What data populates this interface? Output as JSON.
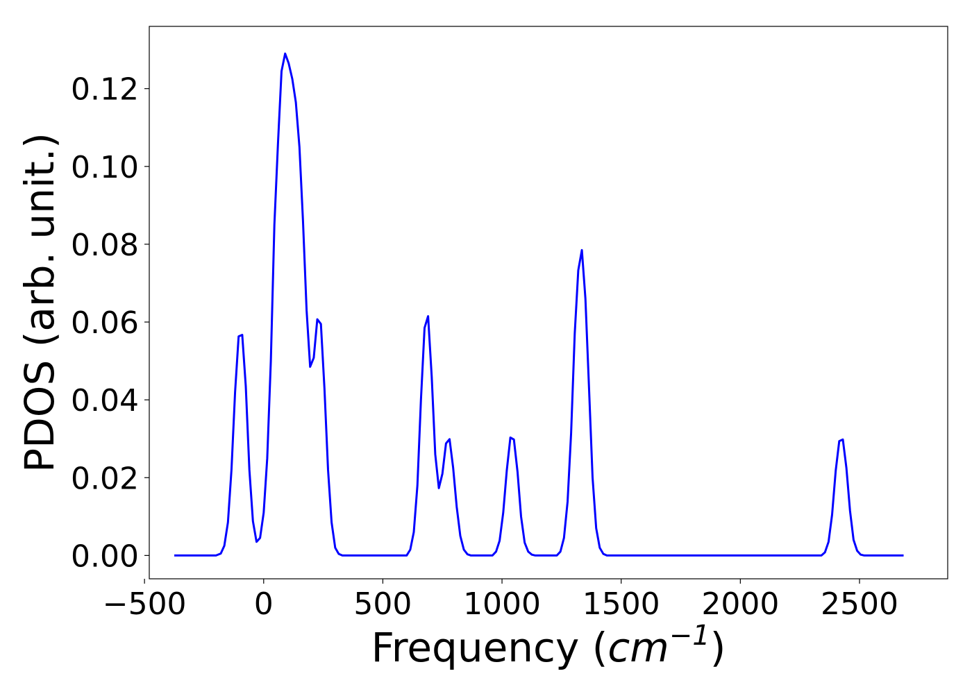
{
  "chart_data": {
    "type": "line",
    "title": "",
    "xlabel": {
      "prefix": "Frequency (",
      "unit": "cm",
      "exponent": "−1",
      "suffix": ")"
    },
    "ylabel": "PDOS (arb. unit.)",
    "xlim": [
      -480,
      2870
    ],
    "ylim": [
      -0.006,
      0.136
    ],
    "xticks": [
      -500,
      0,
      500,
      1000,
      1500,
      2000,
      2500
    ],
    "xtick_labels": [
      "−500",
      "0",
      "500",
      "1000",
      "1500",
      "2000",
      "2500"
    ],
    "yticks": [
      0.0,
      0.02,
      0.04,
      0.06,
      0.08,
      0.1,
      0.12
    ],
    "ytick_labels": [
      "0.00",
      "0.02",
      "0.04",
      "0.06",
      "0.08",
      "0.10",
      "0.12"
    ],
    "grid": false,
    "line_color": "#0000ff",
    "series": [
      {
        "x": [
          -375,
          -200,
          -180,
          -165,
          -150,
          -135,
          -120,
          -105,
          -90,
          -75,
          -60,
          -45,
          -30,
          -15,
          0,
          15,
          30,
          45,
          60,
          75,
          90,
          105,
          120,
          135,
          150,
          165,
          180,
          195,
          210,
          225,
          240,
          255,
          270,
          285,
          300,
          315,
          330,
          345,
          360,
          600,
          615,
          630,
          645,
          660,
          675,
          690,
          705,
          720,
          735,
          750,
          765,
          780,
          795,
          810,
          825,
          840,
          855,
          870,
          885,
          900,
          960,
          975,
          990,
          1005,
          1020,
          1035,
          1050,
          1065,
          1080,
          1095,
          1110,
          1125,
          1140,
          1230,
          1245,
          1260,
          1275,
          1290,
          1305,
          1320,
          1335,
          1350,
          1365,
          1380,
          1395,
          1410,
          1425,
          1440,
          1460,
          2340,
          2355,
          2370,
          2385,
          2400,
          2415,
          2430,
          2445,
          2460,
          2475,
          2490,
          2505,
          2520,
          2685
        ],
        "y": [
          0.0,
          0.0,
          0.0005,
          0.0025,
          0.0085,
          0.022,
          0.042,
          0.0563,
          0.0567,
          0.0435,
          0.022,
          0.0088,
          0.0035,
          0.0045,
          0.011,
          0.025,
          0.05,
          0.085,
          0.106,
          0.1245,
          0.129,
          0.1265,
          0.1225,
          0.1165,
          0.105,
          0.086,
          0.063,
          0.0485,
          0.0508,
          0.0607,
          0.0595,
          0.043,
          0.022,
          0.0085,
          0.002,
          0.0004,
          0.0,
          0.0,
          0.0,
          0.0,
          0.0015,
          0.006,
          0.018,
          0.04,
          0.0585,
          0.0615,
          0.046,
          0.026,
          0.0173,
          0.021,
          0.0288,
          0.0299,
          0.0225,
          0.0125,
          0.005,
          0.0015,
          0.0003,
          0.0,
          0.0,
          0.0,
          0.0,
          0.001,
          0.0038,
          0.011,
          0.0218,
          0.0303,
          0.0298,
          0.0215,
          0.01,
          0.0033,
          0.001,
          0.0002,
          0.0,
          0.0,
          0.001,
          0.0045,
          0.0138,
          0.0315,
          0.057,
          0.0733,
          0.0785,
          0.066,
          0.043,
          0.02,
          0.007,
          0.002,
          0.0004,
          0.0,
          0.0,
          0.0,
          0.0008,
          0.0035,
          0.0105,
          0.0218,
          0.0294,
          0.0298,
          0.0225,
          0.0115,
          0.004,
          0.0012,
          0.0002,
          0.0,
          0.0
        ]
      }
    ]
  }
}
